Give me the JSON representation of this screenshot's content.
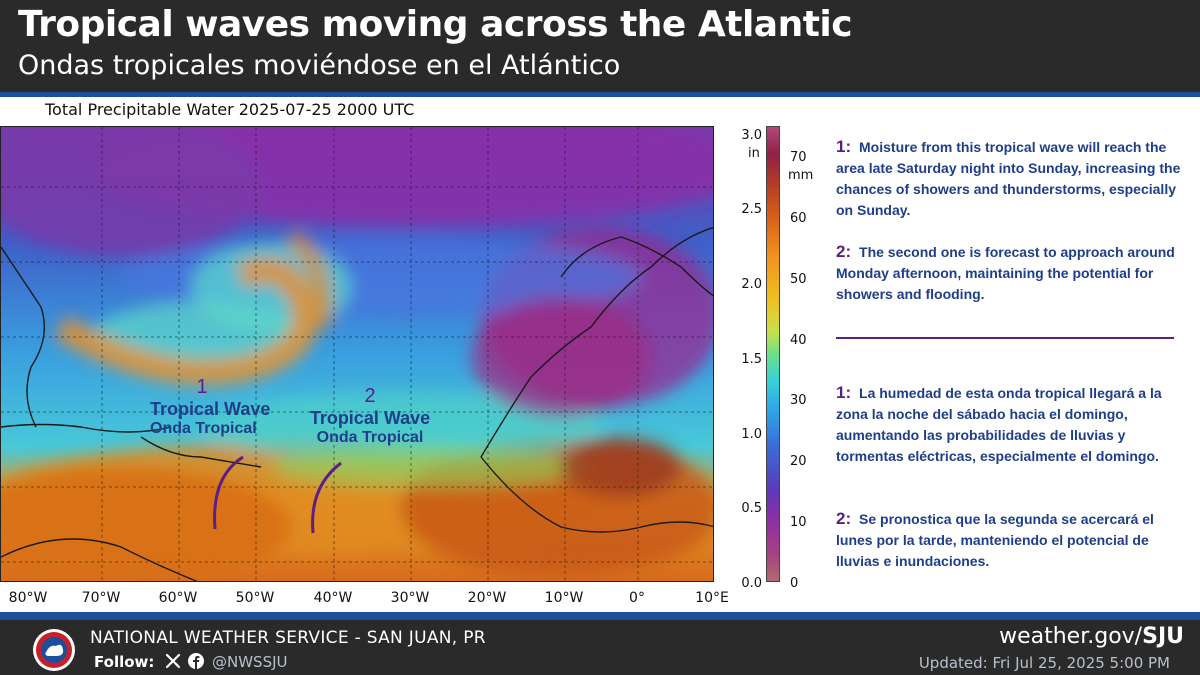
{
  "header": {
    "title": "Tropical waves moving across the Atlantic",
    "subtitle": "Ondas tropicales moviéndose en el Atlántico"
  },
  "map": {
    "caption": "Total Precipitable Water  2025-07-25 2000 UTC",
    "longitude_labels": [
      "80°W",
      "70°W",
      "60°W",
      "50°W",
      "40°W",
      "30°W",
      "20°W",
      "10°W",
      "0°",
      "10°E"
    ],
    "waves": [
      {
        "number": "1",
        "name_en": "Tropical Wave",
        "name_es": "Onda Tropical"
      },
      {
        "number": "2",
        "name_en": "Tropical Wave",
        "name_es": "Onda Tropical"
      }
    ],
    "colorbar": {
      "unit_in": "in",
      "unit_mm": "mm",
      "in_ticks": [
        "3.0",
        "2.5",
        "2.0",
        "1.5",
        "1.0",
        "0.5",
        "0.0"
      ],
      "mm_ticks": [
        "70",
        "60",
        "50",
        "40",
        "30",
        "20",
        "10",
        "0"
      ]
    },
    "colors": {
      "wave_number": "#5b1f86",
      "wave_label": "#1f3e8a",
      "moist": "#e8801c",
      "dry": "#8a2fa8",
      "mid": "#3a8fe0"
    }
  },
  "notes": {
    "en_1_num": "1:",
    "en_1_text": "Moisture from this tropical wave will reach the area late Saturday night into Sunday, increasing the chances of showers and thunderstorms, especially on Sunday.",
    "en_2_num": "2:",
    "en_2_text": "The second one is forecast to approach around Monday afternoon, maintaining the potential for showers and flooding.",
    "es_1_num": "1:",
    "es_1_text": "La humedad de esta onda tropical llegará a la zona la noche del sábado hacia el domingo, aumentando las probabilidades de lluvias y tormentas eléctricas, especialmente el domingo.",
    "es_2_num": "2:",
    "es_2_text": "Se pronostica que la segunda se acercará el lunes por la tarde, manteniendo el potencial de lluvias e inundaciones."
  },
  "footer": {
    "agency": "NATIONAL WEATHER SERVICE - SAN JUAN, PR",
    "follow": "Follow:",
    "handle": "@NWSSJU",
    "site_prefix": "weather.gov/",
    "site_bold": "SJU",
    "updated": "Updated: Fri Jul 25, 2025 5:00 PM",
    "logo_icon": "nws-logo-icon",
    "x_icon": "x-icon",
    "facebook_icon": "facebook-icon"
  }
}
